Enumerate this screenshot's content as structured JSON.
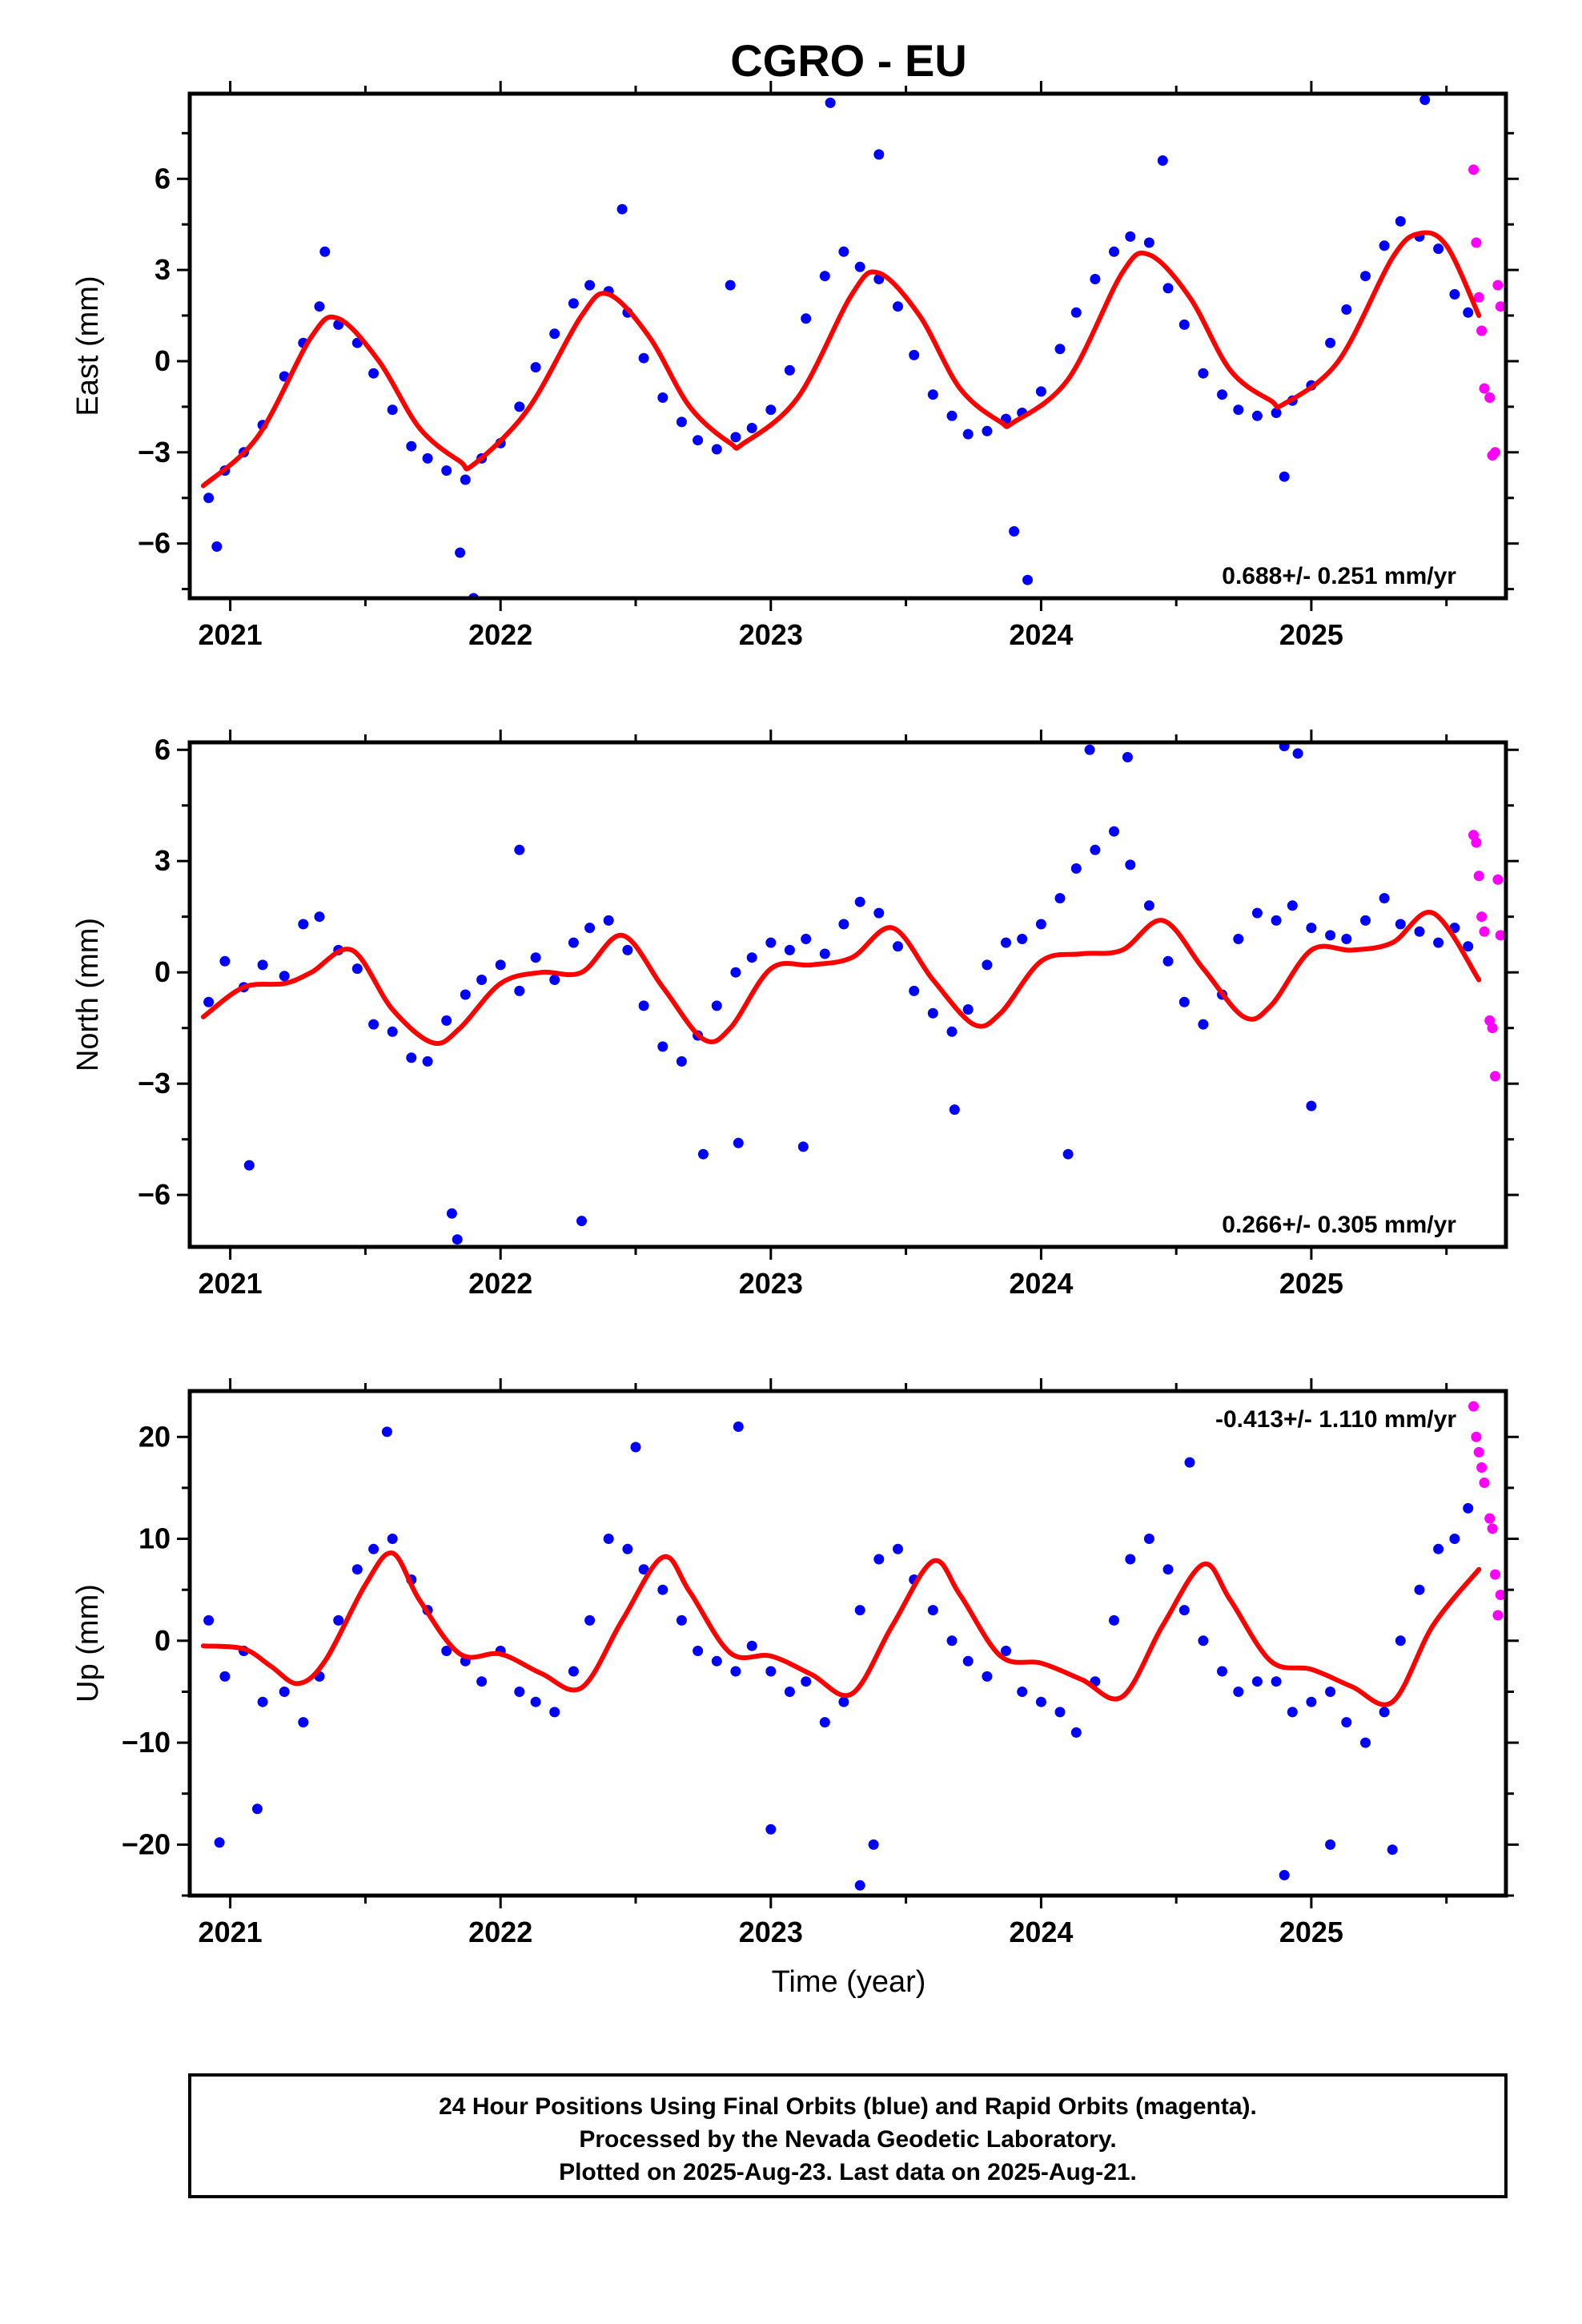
{
  "title": "CGRO - EU",
  "xlabel": "Time (year)",
  "footer": {
    "line1": "24 Hour Positions Using Final Orbits (blue) and Rapid Orbits (magenta).",
    "line2": "Processed by the Nevada Geodetic Laboratory.",
    "line3": "Plotted on 2025-Aug-23. Last data on 2025-Aug-21."
  },
  "colors": {
    "final_orbits": "#0000ff",
    "rapid_orbits": "#ff00ff",
    "model": "#ff0000",
    "frame": "#000000"
  },
  "chart_data": [
    {
      "type": "scatter",
      "ylabel": "East (mm)",
      "rate": "0.688+/- 0.251 mm/yr",
      "rate_position": "bottom-right",
      "xlim": [
        2020.85,
        2025.72
      ],
      "ylim": [
        -7.8,
        8.8
      ],
      "xticks": [
        2021,
        2022,
        2023,
        2024,
        2025
      ],
      "xtick_labels": [
        "2021",
        "2022",
        "2023",
        "2024",
        "2025"
      ],
      "yticks": [
        -6,
        -3,
        0,
        3,
        6
      ],
      "ytick_labels": [
        "−6",
        "−3",
        "0",
        "3",
        "6"
      ],
      "grid": false,
      "model": {
        "name": "",
        "x": [
          2020.9,
          2021.1,
          2021.3,
          2021.4,
          2021.55,
          2021.7,
          2021.85,
          2021.9,
          2022.1,
          2022.3,
          2022.4,
          2022.55,
          2022.7,
          2022.85,
          2022.9,
          2023.1,
          2023.3,
          2023.4,
          2023.55,
          2023.7,
          2023.85,
          2023.9,
          2024.1,
          2024.3,
          2024.4,
          2024.55,
          2024.7,
          2024.85,
          2024.9,
          2025.1,
          2025.3,
          2025.4,
          2025.5,
          2025.62
        ],
        "y": [
          -4.1,
          -2.5,
          0.8,
          1.4,
          0.0,
          -2.2,
          -3.3,
          -3.4,
          -1.6,
          1.5,
          2.2,
          0.8,
          -1.5,
          -2.7,
          -2.7,
          -1.2,
          2.2,
          2.9,
          1.5,
          -0.9,
          -2.0,
          -2.0,
          -0.6,
          2.9,
          3.5,
          2.1,
          -0.3,
          -1.3,
          -1.4,
          0.0,
          3.4,
          4.2,
          3.8,
          1.5
        ]
      },
      "series": [
        {
          "name": "Final Orbits",
          "x": [
            2020.92,
            2020.98,
            2021.05,
            2021.12,
            2021.2,
            2021.27,
            2021.33,
            2021.4,
            2021.47,
            2021.53,
            2021.6,
            2021.67,
            2021.73,
            2021.8,
            2021.87,
            2021.93,
            2022.0,
            2022.07,
            2022.13,
            2022.2,
            2022.27,
            2022.33,
            2022.4,
            2022.47,
            2022.53,
            2022.6,
            2022.67,
            2022.73,
            2022.8,
            2022.87,
            2022.93,
            2023.0,
            2023.07,
            2023.13,
            2023.2,
            2023.27,
            2023.33,
            2023.4,
            2023.47,
            2023.53,
            2023.6,
            2023.67,
            2023.73,
            2023.8,
            2023.87,
            2023.93,
            2024.0,
            2024.07,
            2024.13,
            2024.2,
            2024.27,
            2024.33,
            2024.4,
            2024.47,
            2024.53,
            2024.6,
            2024.67,
            2024.73,
            2024.8,
            2024.87,
            2024.93,
            2025.0,
            2025.07,
            2025.13,
            2025.2,
            2025.27,
            2025.33,
            2025.4,
            2025.47,
            2025.53,
            2025.58,
            2020.95,
            2021.35,
            2021.9,
            2022.45,
            2022.85,
            2023.22,
            2023.4,
            2023.95,
            2024.45,
            2024.9,
            2025.42,
            2021.85,
            2023.9
          ],
          "y": [
            -4.5,
            -3.6,
            -3.0,
            -2.1,
            -0.5,
            0.6,
            1.8,
            1.2,
            0.6,
            -0.4,
            -1.6,
            -2.8,
            -3.2,
            -3.6,
            -3.9,
            -3.2,
            -2.7,
            -1.5,
            -0.2,
            0.9,
            1.9,
            2.5,
            2.3,
            1.6,
            0.1,
            -1.2,
            -2.0,
            -2.6,
            -2.9,
            -2.5,
            -2.2,
            -1.6,
            -0.3,
            1.4,
            2.8,
            3.6,
            3.1,
            2.7,
            1.8,
            0.2,
            -1.1,
            -1.8,
            -2.4,
            -2.3,
            -1.9,
            -1.7,
            -1.0,
            0.4,
            1.6,
            2.7,
            3.6,
            4.1,
            3.9,
            2.4,
            1.2,
            -0.4,
            -1.1,
            -1.6,
            -1.8,
            -1.7,
            -1.3,
            -0.8,
            0.6,
            1.7,
            2.8,
            3.8,
            4.6,
            4.1,
            3.7,
            2.2,
            1.6,
            -6.1,
            3.6,
            -7.8,
            5.0,
            2.5,
            8.5,
            6.8,
            -7.2,
            6.6,
            -3.8,
            8.6,
            -6.3,
            -5.6
          ]
        },
        {
          "name": "Rapid Orbits",
          "x": [
            2025.6,
            2025.61,
            2025.62,
            2025.63,
            2025.64,
            2025.66,
            2025.67,
            2025.68,
            2025.69,
            2025.7
          ],
          "y": [
            6.3,
            3.9,
            2.1,
            1.0,
            -0.9,
            -1.2,
            -3.1,
            -3.0,
            2.5,
            1.8
          ]
        }
      ]
    },
    {
      "type": "scatter",
      "ylabel": "North (mm)",
      "rate": "0.266+/- 0.305 mm/yr",
      "rate_position": "bottom-right",
      "xlim": [
        2020.85,
        2025.72
      ],
      "ylim": [
        -7.4,
        6.2
      ],
      "xticks": [
        2021,
        2022,
        2023,
        2024,
        2025
      ],
      "xtick_labels": [
        "2021",
        "2022",
        "2023",
        "2024",
        "2025"
      ],
      "yticks": [
        -6,
        -3,
        0,
        3,
        6
      ],
      "ytick_labels": [
        "−6",
        "−3",
        "0",
        "3",
        "6"
      ],
      "grid": false,
      "model": {
        "name": "",
        "x": [
          2020.9,
          2021.05,
          2021.2,
          2021.3,
          2021.45,
          2021.6,
          2021.75,
          2021.85,
          2022.0,
          2022.15,
          2022.3,
          2022.45,
          2022.6,
          2022.75,
          2022.85,
          2023.0,
          2023.15,
          2023.3,
          2023.45,
          2023.6,
          2023.75,
          2023.85,
          2024.0,
          2024.15,
          2024.3,
          2024.45,
          2024.6,
          2024.75,
          2024.85,
          2025.0,
          2025.15,
          2025.3,
          2025.45,
          2025.62
        ],
        "y": [
          -1.2,
          -0.4,
          -0.3,
          0.0,
          0.6,
          -1.0,
          -1.9,
          -1.5,
          -0.3,
          0.0,
          0.0,
          1.0,
          -0.4,
          -1.8,
          -1.5,
          0.1,
          0.2,
          0.4,
          1.2,
          -0.2,
          -1.4,
          -1.1,
          0.3,
          0.5,
          0.6,
          1.4,
          0.1,
          -1.2,
          -0.9,
          0.6,
          0.6,
          0.8,
          1.6,
          -0.2
        ]
      },
      "series": [
        {
          "name": "Final Orbits",
          "x": [
            2020.92,
            2020.98,
            2021.05,
            2021.12,
            2021.2,
            2021.27,
            2021.33,
            2021.4,
            2021.47,
            2021.53,
            2021.6,
            2021.67,
            2021.73,
            2021.8,
            2021.87,
            2021.93,
            2022.0,
            2022.07,
            2022.13,
            2022.2,
            2022.27,
            2022.33,
            2022.4,
            2022.47,
            2022.53,
            2022.6,
            2022.67,
            2022.73,
            2022.8,
            2022.87,
            2022.93,
            2023.0,
            2023.07,
            2023.13,
            2023.2,
            2023.27,
            2023.33,
            2023.4,
            2023.47,
            2023.53,
            2023.6,
            2023.67,
            2023.73,
            2023.8,
            2023.87,
            2023.93,
            2024.0,
            2024.07,
            2024.13,
            2024.2,
            2024.27,
            2024.33,
            2024.4,
            2024.47,
            2024.53,
            2024.6,
            2024.67,
            2024.73,
            2024.8,
            2024.87,
            2024.93,
            2025.0,
            2025.07,
            2025.13,
            2025.2,
            2025.27,
            2025.33,
            2025.4,
            2025.47,
            2025.53,
            2025.58,
            2021.07,
            2021.82,
            2021.84,
            2022.07,
            2022.3,
            2022.75,
            2022.88,
            2023.12,
            2023.68,
            2024.1,
            2024.18,
            2024.32,
            2024.9,
            2024.95,
            2025.0
          ],
          "y": [
            -0.8,
            0.3,
            -0.4,
            0.2,
            -0.1,
            1.3,
            1.5,
            0.6,
            0.1,
            -1.4,
            -1.6,
            -2.3,
            -2.4,
            -1.3,
            -0.6,
            -0.2,
            0.2,
            -0.5,
            0.4,
            -0.2,
            0.8,
            1.2,
            1.4,
            0.6,
            -0.9,
            -2.0,
            -2.4,
            -1.7,
            -0.9,
            0.0,
            0.4,
            0.8,
            0.6,
            0.9,
            0.5,
            1.3,
            1.9,
            1.6,
            0.7,
            -0.5,
            -1.1,
            -1.6,
            -1.0,
            0.2,
            0.8,
            0.9,
            1.3,
            2.0,
            2.8,
            3.3,
            3.8,
            2.9,
            1.8,
            0.3,
            -0.8,
            -1.4,
            -0.6,
            0.9,
            1.6,
            1.4,
            1.8,
            1.2,
            1.0,
            0.9,
            1.4,
            2.0,
            1.3,
            1.1,
            0.8,
            1.2,
            0.7,
            -5.2,
            -6.5,
            -7.2,
            3.3,
            -6.7,
            -4.9,
            -4.6,
            -4.7,
            -3.7,
            -4.9,
            6.0,
            5.8,
            6.1,
            5.9,
            -3.6
          ]
        },
        {
          "name": "Rapid Orbits",
          "x": [
            2025.6,
            2025.61,
            2025.62,
            2025.63,
            2025.64,
            2025.66,
            2025.67,
            2025.68,
            2025.69,
            2025.7
          ],
          "y": [
            3.7,
            3.5,
            2.6,
            1.5,
            1.1,
            -1.3,
            -1.5,
            -2.8,
            2.5,
            1.0
          ]
        }
      ]
    },
    {
      "type": "scatter",
      "ylabel": "Up (mm)",
      "rate": "-0.413+/- 1.110 mm/yr",
      "rate_position": "top-right",
      "xlim": [
        2020.85,
        2025.72
      ],
      "ylim": [
        -25,
        24.5
      ],
      "xticks": [
        2021,
        2022,
        2023,
        2024,
        2025
      ],
      "xtick_labels": [
        "2021",
        "2022",
        "2023",
        "2024",
        "2025"
      ],
      "yticks": [
        -20,
        -10,
        0,
        10,
        20
      ],
      "ytick_labels": [
        "−20",
        "−10",
        "0",
        "10",
        "20"
      ],
      "grid": false,
      "model": {
        "name": "",
        "x": [
          2020.9,
          2021.05,
          2021.15,
          2021.25,
          2021.35,
          2021.5,
          2021.6,
          2021.7,
          2021.85,
          2022.0,
          2022.15,
          2022.3,
          2022.45,
          2022.6,
          2022.7,
          2022.85,
          2023.0,
          2023.15,
          2023.3,
          2023.45,
          2023.6,
          2023.7,
          2023.85,
          2024.0,
          2024.15,
          2024.3,
          2024.45,
          2024.6,
          2024.7,
          2024.85,
          2025.0,
          2025.15,
          2025.3,
          2025.45,
          2025.62
        ],
        "y": [
          -0.5,
          -0.8,
          -2.5,
          -4.2,
          -2.0,
          5.5,
          8.6,
          4.0,
          -1.3,
          -1.3,
          -3.2,
          -4.6,
          2.0,
          8.2,
          4.8,
          -1.2,
          -1.5,
          -3.3,
          -5.2,
          1.5,
          7.8,
          4.5,
          -1.5,
          -2.2,
          -3.8,
          -5.5,
          1.5,
          7.5,
          4.0,
          -2.0,
          -2.8,
          -4.5,
          -6.0,
          1.5,
          7.0
        ]
      },
      "series": [
        {
          "name": "Final Orbits",
          "x": [
            2020.92,
            2020.98,
            2021.05,
            2021.12,
            2021.2,
            2021.27,
            2021.33,
            2021.4,
            2021.47,
            2021.53,
            2021.6,
            2021.67,
            2021.73,
            2021.8,
            2021.87,
            2021.93,
            2022.0,
            2022.07,
            2022.13,
            2022.2,
            2022.27,
            2022.33,
            2022.4,
            2022.47,
            2022.53,
            2022.6,
            2022.67,
            2022.73,
            2022.8,
            2022.87,
            2022.93,
            2023.0,
            2023.07,
            2023.13,
            2023.2,
            2023.27,
            2023.33,
            2023.4,
            2023.47,
            2023.53,
            2023.6,
            2023.67,
            2023.73,
            2023.8,
            2023.87,
            2023.93,
            2024.0,
            2024.07,
            2024.13,
            2024.2,
            2024.27,
            2024.33,
            2024.4,
            2024.47,
            2024.53,
            2024.6,
            2024.67,
            2024.73,
            2024.8,
            2024.87,
            2024.93,
            2025.0,
            2025.07,
            2025.13,
            2025.2,
            2025.27,
            2025.33,
            2025.4,
            2025.47,
            2025.53,
            2025.58,
            2020.96,
            2021.1,
            2021.58,
            2022.5,
            2022.88,
            2023.33,
            2023.38,
            2023.0,
            2024.9,
            2024.55,
            2025.07,
            2025.3
          ],
          "y": [
            2.0,
            -3.5,
            -1.0,
            -6.0,
            -5.0,
            -8.0,
            -3.5,
            2.0,
            7.0,
            9.0,
            10.0,
            6.0,
            3.0,
            -1.0,
            -2.0,
            -4.0,
            -1.0,
            -5.0,
            -6.0,
            -7.0,
            -3.0,
            2.0,
            10.0,
            9.0,
            7.0,
            5.0,
            2.0,
            -1.0,
            -2.0,
            -3.0,
            -0.5,
            -3.0,
            -5.0,
            -4.0,
            -8.0,
            -6.0,
            3.0,
            8.0,
            9.0,
            6.0,
            3.0,
            0.0,
            -2.0,
            -3.5,
            -1.0,
            -5.0,
            -6.0,
            -7.0,
            -9.0,
            -4.0,
            2.0,
            8.0,
            10.0,
            7.0,
            3.0,
            0.0,
            -3.0,
            -5.0,
            -4.0,
            -4.0,
            -7.0,
            -6.0,
            -5.0,
            -8.0,
            -10.0,
            -7.0,
            0.0,
            5.0,
            9.0,
            10.0,
            13.0,
            -19.8,
            -16.5,
            20.5,
            19.0,
            21.0,
            -24.0,
            -20.0,
            -18.5,
            -23.0,
            17.5,
            -20.0,
            -20.5
          ]
        },
        {
          "name": "Rapid Orbits",
          "x": [
            2025.6,
            2025.61,
            2025.62,
            2025.63,
            2025.64,
            2025.66,
            2025.67,
            2025.68,
            2025.69,
            2025.7
          ],
          "y": [
            23.0,
            20.0,
            18.5,
            17.0,
            15.5,
            12.0,
            11.0,
            6.5,
            2.5,
            4.5
          ]
        }
      ]
    }
  ]
}
